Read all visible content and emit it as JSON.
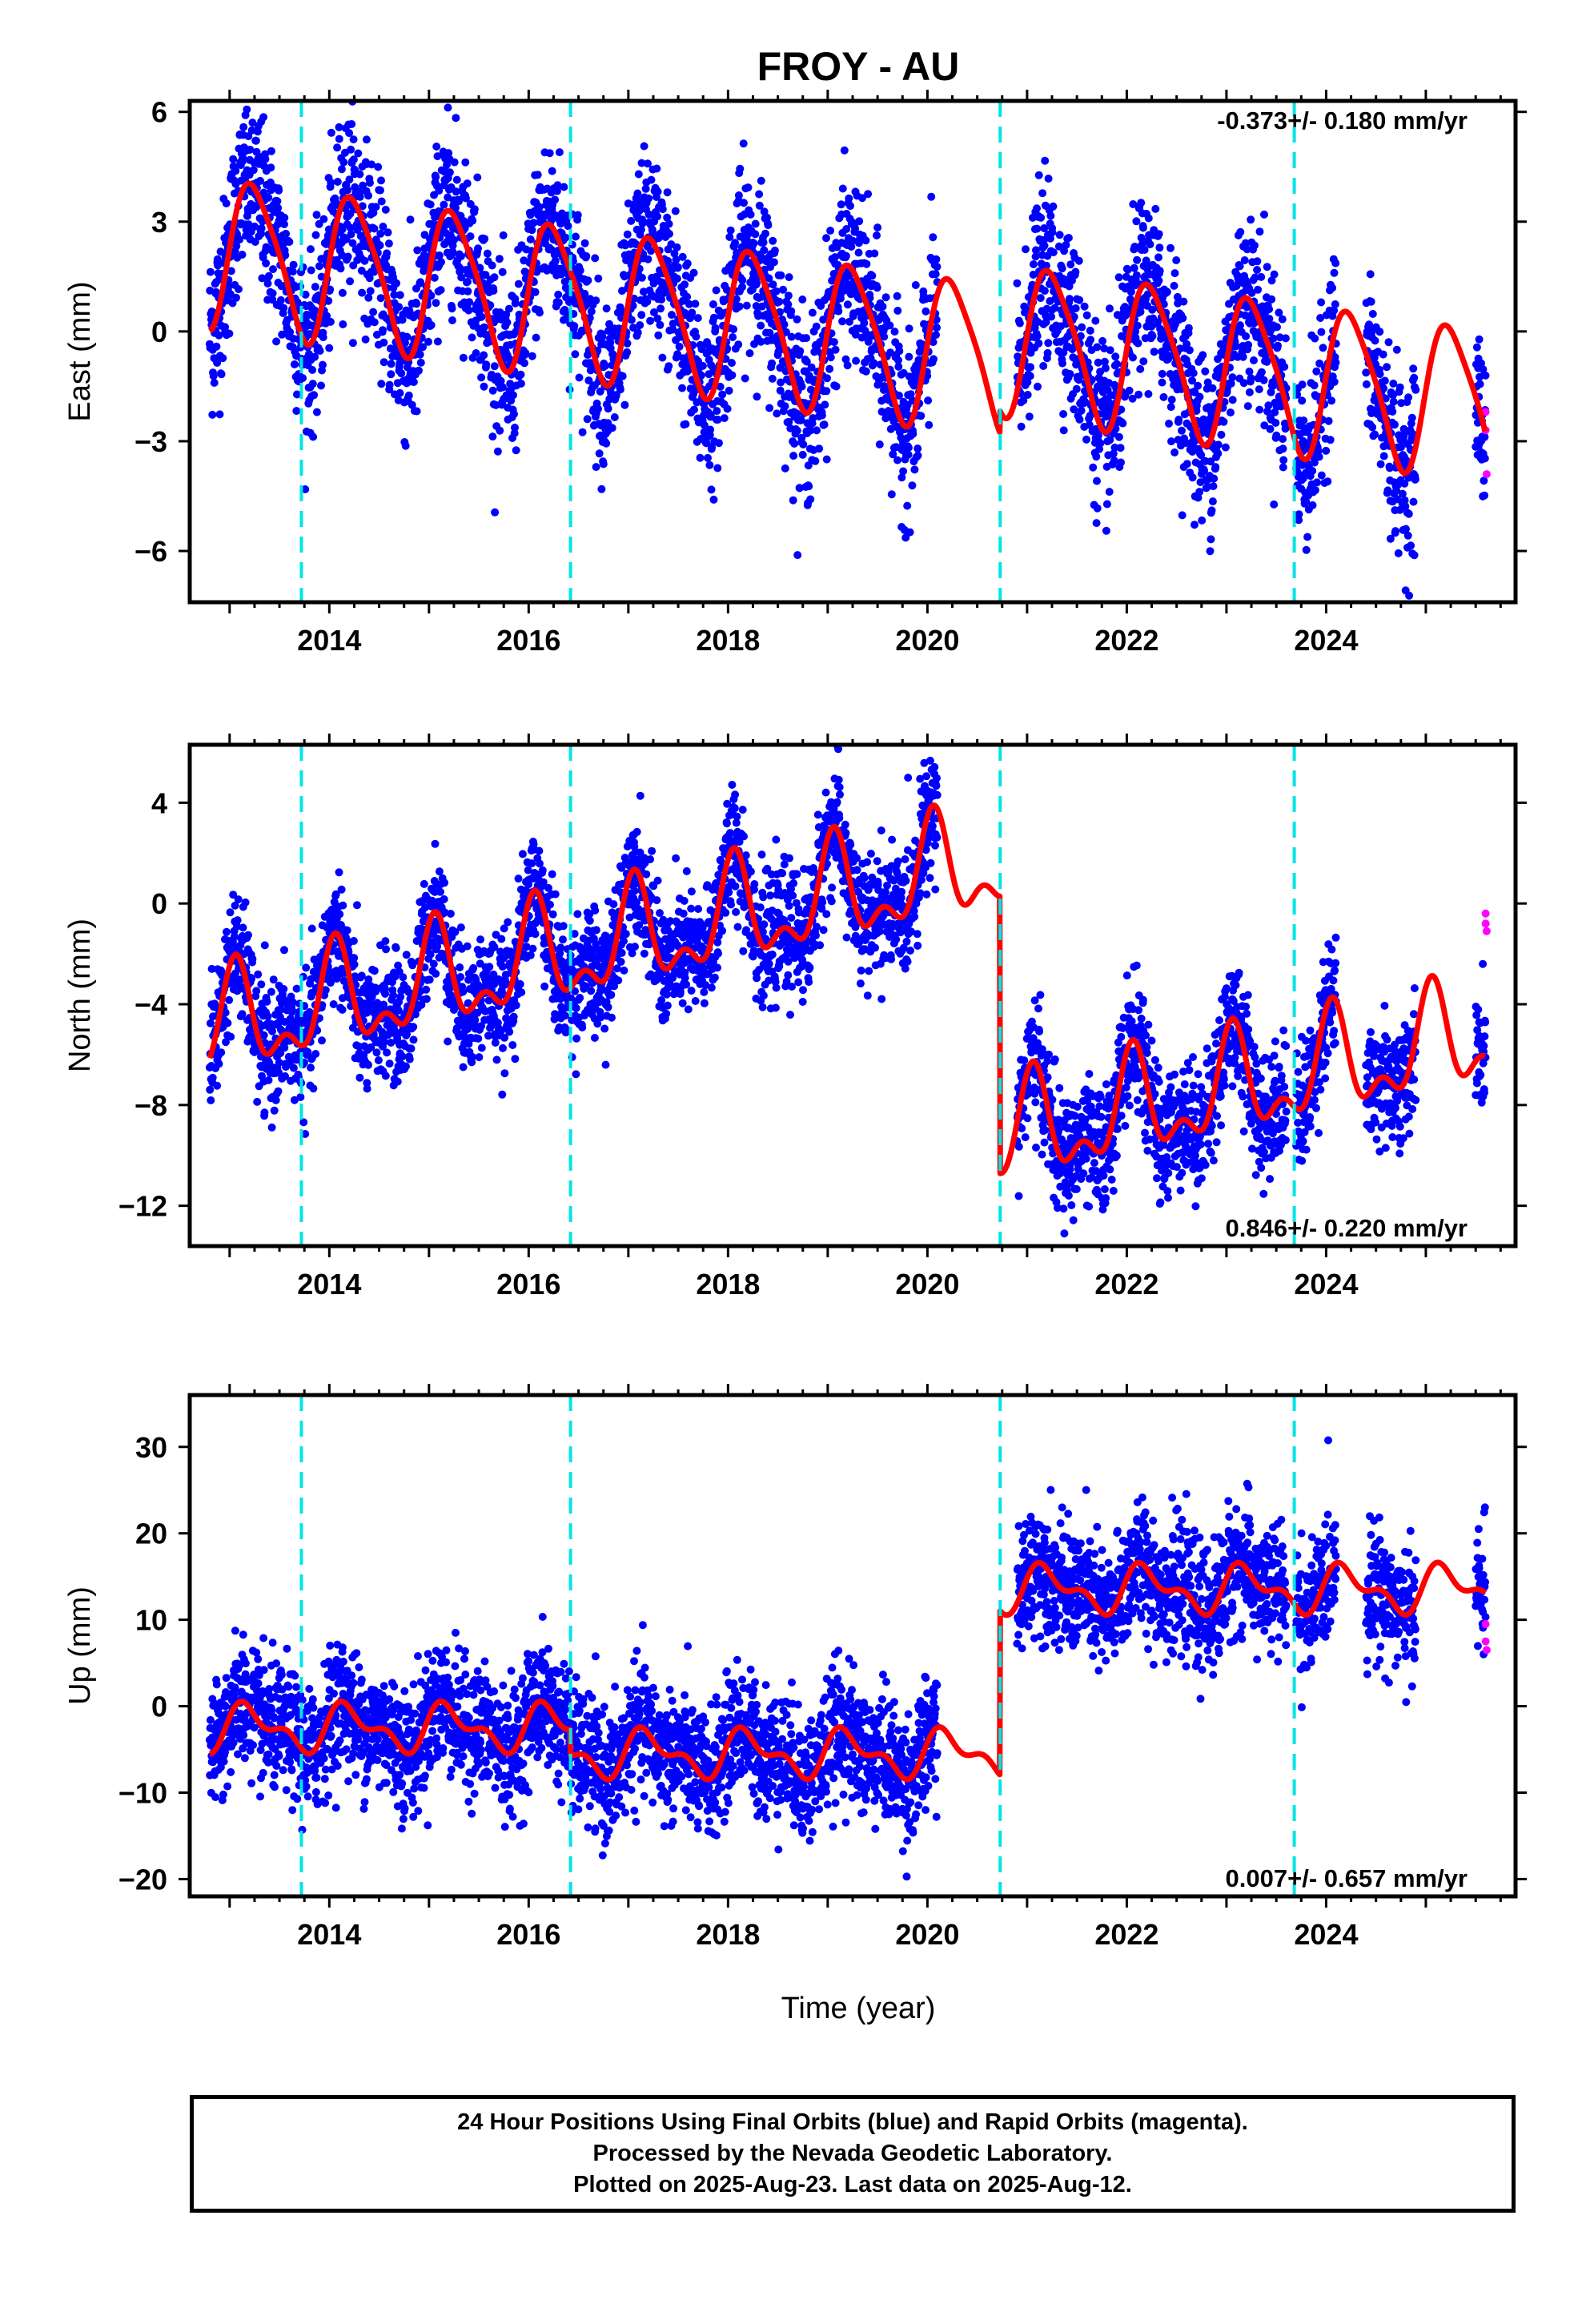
{
  "title": "FROY - AU",
  "xlabel": "Time (year)",
  "footer": {
    "line1": "24 Hour Positions Using Final Orbits (blue) and Rapid Orbits (magenta).",
    "line2": "Processed by the Nevada Geodetic Laboratory.",
    "line3": "Plotted on 2025-Aug-23. Last data on 2025-Aug-12."
  },
  "colors": {
    "final_orbits": "#0000ff",
    "rapid_orbits": "#ff00ff",
    "model": "#ff0000",
    "events": "#00e5e5"
  },
  "chart_data": [
    {
      "type": "scatter",
      "component": "East",
      "ylabel": "East (mm)",
      "rate_text": "-0.373+/- 0.180 mm/yr",
      "xlim": [
        2012.6,
        2025.9
      ],
      "ylim": [
        -7.4,
        6.3
      ],
      "yticks": [
        -6,
        -3,
        0,
        3,
        6
      ],
      "xticks": [
        2014,
        2016,
        2018,
        2020,
        2022,
        2024
      ],
      "events": [
        2013.72,
        2016.42,
        2020.73,
        2023.68
      ],
      "model": {
        "offset": -0.1,
        "trend": -0.373,
        "annual": 2.0,
        "semiannual": 0.35,
        "phase": 0.0,
        "phase2": 0.4,
        "steps": [
          [
            2020.73,
            0.6
          ]
        ],
        "noise": 1.15
      },
      "data_ranges": [
        [
          2012.8,
          2020.1
        ],
        [
          2020.9,
          2023.6
        ],
        [
          2023.7,
          2024.1
        ],
        [
          2024.4,
          2024.9
        ],
        [
          2025.5,
          2025.6
        ]
      ],
      "rapid_points": [
        [
          2025.6,
          -2.2
        ],
        [
          2025.6,
          -2.7
        ],
        [
          2025.61,
          -3.9
        ]
      ]
    },
    {
      "type": "scatter",
      "component": "North",
      "ylabel": "North (mm)",
      "rate_text": "0.846+/- 0.220 mm/yr",
      "xlim": [
        2012.6,
        2025.9
      ],
      "ylim": [
        -13.6,
        6.3
      ],
      "yticks": [
        -12,
        -8,
        -4,
        0,
        4
      ],
      "xticks": [
        2014,
        2016,
        2018,
        2020,
        2022,
        2024
      ],
      "events": [
        2013.72,
        2016.42,
        2020.73,
        2023.68
      ],
      "model": {
        "offset": 0.2,
        "trend": 0.846,
        "annual": 1.8,
        "semiannual": 1.0,
        "phase": 1.2,
        "phase2": 0.8,
        "steps": [
          [
            2020.73,
            -11.0
          ]
        ],
        "noise": 1.2
      },
      "data_ranges": [
        [
          2012.8,
          2020.1
        ],
        [
          2020.9,
          2023.6
        ],
        [
          2023.7,
          2024.1
        ],
        [
          2024.4,
          2024.9
        ],
        [
          2025.5,
          2025.6
        ]
      ],
      "rapid_points": [
        [
          2025.6,
          -0.4
        ],
        [
          2025.6,
          -0.8
        ],
        [
          2025.61,
          -1.1
        ]
      ]
    },
    {
      "type": "scatter",
      "component": "Up",
      "ylabel": "Up (mm)",
      "rate_text": "0.007+/- 0.657 mm/yr",
      "xlim": [
        2012.6,
        2025.9
      ],
      "ylim": [
        -22,
        36
      ],
      "yticks": [
        -20,
        -10,
        0,
        10,
        20,
        30
      ],
      "xticks": [
        2014,
        2016,
        2018,
        2020,
        2022,
        2024
      ],
      "events": [
        2013.72,
        2016.42,
        2020.73,
        2023.68
      ],
      "model": {
        "offset": -2.5,
        "trend": 0.007,
        "annual": 2.2,
        "semiannual": 1.3,
        "phase": 0.3,
        "phase2": 0.5,
        "steps": [
          [
            2016.42,
            -3.0
          ],
          [
            2020.73,
            19.0
          ]
        ],
        "noise": 3.6
      },
      "data_ranges": [
        [
          2012.8,
          2020.1
        ],
        [
          2020.9,
          2023.6
        ],
        [
          2023.7,
          2024.1
        ],
        [
          2024.4,
          2024.9
        ],
        [
          2025.5,
          2025.6
        ]
      ],
      "rapid_points": [
        [
          2025.6,
          9.5
        ],
        [
          2025.6,
          7.5
        ],
        [
          2025.61,
          6.5
        ]
      ]
    }
  ]
}
